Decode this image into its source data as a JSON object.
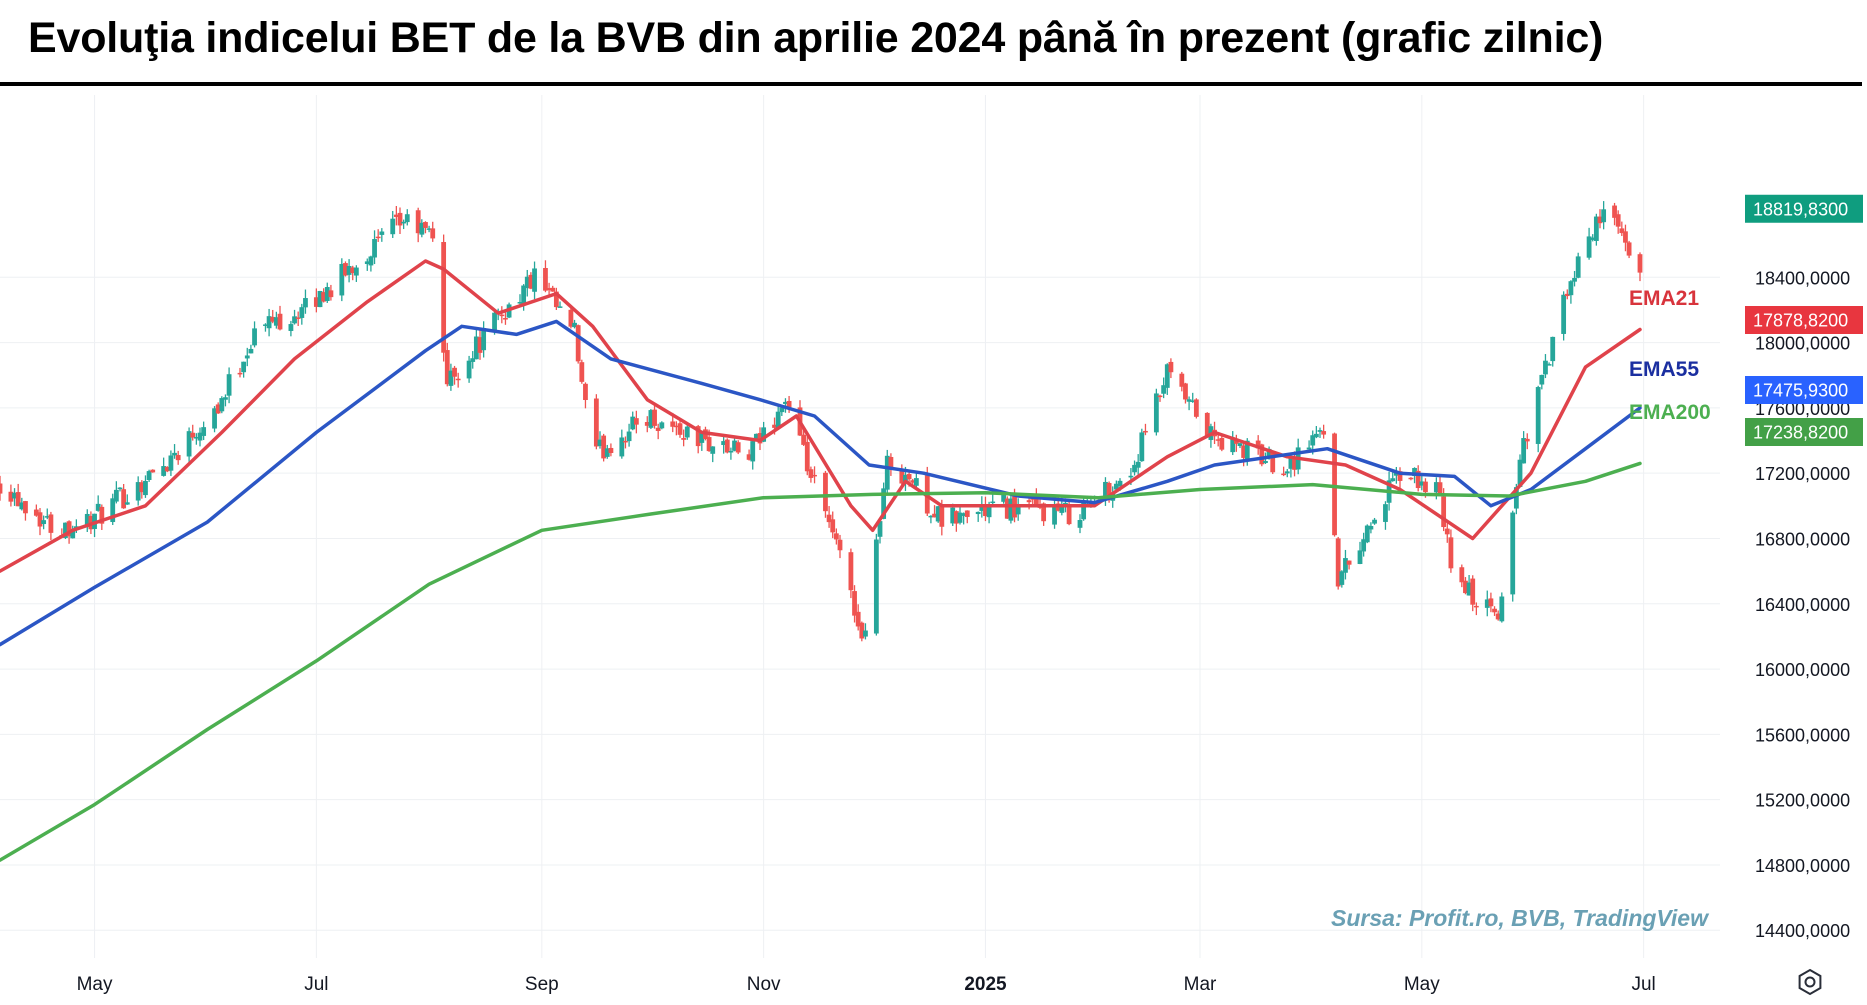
{
  "title": "Evoluţia indicelui BET de la BVB din aprilie 2024 până în prezent (grafic zilnic)",
  "source_note": "Sursa: Profit.ro, BVB, TradingView",
  "colors": {
    "up": "#26a69a",
    "down": "#ef5350",
    "ema21": "#e0434b",
    "ema55": "#2b56c5",
    "ema200": "#4caf50",
    "price_tag": "#0f9d7f",
    "ema21_tag": "#e8363f",
    "ema55_tag": "#2962ff",
    "ema200_tag": "#43a047",
    "grid": "#eef0f3"
  },
  "chart_data": {
    "type": "candlestick",
    "instrument": "BET",
    "interval": "daily",
    "x_tick_labels": [
      {
        "label": "May",
        "date": "2024-05-01"
      },
      {
        "label": "Jul",
        "date": "2024-07-01"
      },
      {
        "label": "Sep",
        "date": "2024-09-01"
      },
      {
        "label": "Nov",
        "date": "2024-11-01"
      },
      {
        "label": "2025",
        "date": "2025-01-01",
        "bold": true
      },
      {
        "label": "Mar",
        "date": "2025-03-01"
      },
      {
        "label": "May",
        "date": "2025-05-01"
      },
      {
        "label": "Jul",
        "date": "2025-07-01"
      }
    ],
    "x_range": [
      "2024-04-05",
      "2025-07-22"
    ],
    "y_tick_labels": [
      "18400,0000",
      "18000,0000",
      "17600,0000",
      "17200,0000",
      "16800,0000",
      "16400,0000",
      "16000,0000",
      "15600,0000",
      "15200,0000",
      "14800,0000",
      "14400,0000"
    ],
    "y_ticks": [
      18400,
      18000,
      17600,
      17200,
      16800,
      16400,
      16000,
      15600,
      15200,
      14800,
      14400
    ],
    "ylim": [
      14230,
      19290
    ],
    "grid": true,
    "price_series": [
      {
        "date": "2024-04-05",
        "close": 17150
      },
      {
        "date": "2024-04-20",
        "close": 16860
      },
      {
        "date": "2024-05-01",
        "close": 16920
      },
      {
        "date": "2024-05-20",
        "close": 17250
      },
      {
        "date": "2024-06-05",
        "close": 17650
      },
      {
        "date": "2024-06-15",
        "close": 18100
      },
      {
        "date": "2024-06-28",
        "close": 18200
      },
      {
        "date": "2024-07-10",
        "close": 18450
      },
      {
        "date": "2024-07-25",
        "close": 18750
      },
      {
        "date": "2024-08-02",
        "close": 18650
      },
      {
        "date": "2024-08-06",
        "close": 17750
      },
      {
        "date": "2024-08-20",
        "close": 18150
      },
      {
        "date": "2024-08-30",
        "close": 18400
      },
      {
        "date": "2024-09-10",
        "close": 18050
      },
      {
        "date": "2024-09-15",
        "close": 17300
      },
      {
        "date": "2024-09-30",
        "close": 17550
      },
      {
        "date": "2024-10-15",
        "close": 17400
      },
      {
        "date": "2024-10-28",
        "close": 17300
      },
      {
        "date": "2024-11-07",
        "close": 17650
      },
      {
        "date": "2024-11-12",
        "close": 17300
      },
      {
        "date": "2024-11-25",
        "close": 16500
      },
      {
        "date": "2024-11-28",
        "close": 16150
      },
      {
        "date": "2024-12-05",
        "close": 17250
      },
      {
        "date": "2024-12-10",
        "close": 17200
      },
      {
        "date": "2024-12-20",
        "close": 16900
      },
      {
        "date": "2025-01-05",
        "close": 17000
      },
      {
        "date": "2025-01-25",
        "close": 16950
      },
      {
        "date": "2025-02-10",
        "close": 17200
      },
      {
        "date": "2025-02-20",
        "close": 17800
      },
      {
        "date": "2025-03-05",
        "close": 17400
      },
      {
        "date": "2025-03-25",
        "close": 17250
      },
      {
        "date": "2025-04-05",
        "close": 17500
      },
      {
        "date": "2025-04-08",
        "close": 16550
      },
      {
        "date": "2025-04-25",
        "close": 17200
      },
      {
        "date": "2025-05-05",
        "close": 17100
      },
      {
        "date": "2025-05-10",
        "close": 16550
      },
      {
        "date": "2025-05-22",
        "close": 16300
      },
      {
        "date": "2025-05-28",
        "close": 17300
      },
      {
        "date": "2025-06-10",
        "close": 18300
      },
      {
        "date": "2025-06-20",
        "close": 18850
      },
      {
        "date": "2025-06-30",
        "close": 18380
      }
    ],
    "series": [
      {
        "name": "EMA21",
        "last_value": "17878,8200",
        "points": [
          {
            "date": "2024-04-05",
            "value": 16600
          },
          {
            "date": "2024-04-25",
            "value": 16850
          },
          {
            "date": "2024-05-15",
            "value": 17000
          },
          {
            "date": "2024-06-05",
            "value": 17450
          },
          {
            "date": "2024-06-25",
            "value": 17900
          },
          {
            "date": "2024-07-15",
            "value": 18250
          },
          {
            "date": "2024-07-31",
            "value": 18500
          },
          {
            "date": "2024-08-05",
            "value": 18450
          },
          {
            "date": "2024-08-20",
            "value": 18180
          },
          {
            "date": "2024-09-05",
            "value": 18300
          },
          {
            "date": "2024-09-15",
            "value": 18100
          },
          {
            "date": "2024-09-30",
            "value": 17650
          },
          {
            "date": "2024-10-15",
            "value": 17450
          },
          {
            "date": "2024-10-31",
            "value": 17400
          },
          {
            "date": "2024-11-10",
            "value": 17550
          },
          {
            "date": "2024-11-25",
            "value": 17000
          },
          {
            "date": "2024-12-01",
            "value": 16850
          },
          {
            "date": "2024-12-10",
            "value": 17150
          },
          {
            "date": "2024-12-20",
            "value": 17000
          },
          {
            "date": "2025-01-10",
            "value": 17000
          },
          {
            "date": "2025-01-31",
            "value": 17000
          },
          {
            "date": "2025-02-20",
            "value": 17300
          },
          {
            "date": "2025-03-05",
            "value": 17450
          },
          {
            "date": "2025-03-25",
            "value": 17300
          },
          {
            "date": "2025-04-10",
            "value": 17250
          },
          {
            "date": "2025-04-25",
            "value": 17100
          },
          {
            "date": "2025-05-15",
            "value": 16800
          },
          {
            "date": "2025-05-31",
            "value": 17200
          },
          {
            "date": "2025-06-15",
            "value": 17850
          },
          {
            "date": "2025-06-30",
            "value": 18080
          }
        ]
      },
      {
        "name": "EMA55",
        "last_value": "17475,9300",
        "points": [
          {
            "date": "2024-04-05",
            "value": 16150
          },
          {
            "date": "2024-05-01",
            "value": 16500
          },
          {
            "date": "2024-06-01",
            "value": 16900
          },
          {
            "date": "2024-07-01",
            "value": 17450
          },
          {
            "date": "2024-07-31",
            "value": 17950
          },
          {
            "date": "2024-08-10",
            "value": 18100
          },
          {
            "date": "2024-08-25",
            "value": 18050
          },
          {
            "date": "2024-09-05",
            "value": 18130
          },
          {
            "date": "2024-09-20",
            "value": 17900
          },
          {
            "date": "2024-10-15",
            "value": 17750
          },
          {
            "date": "2024-10-31",
            "value": 17650
          },
          {
            "date": "2024-11-15",
            "value": 17550
          },
          {
            "date": "2024-11-30",
            "value": 17250
          },
          {
            "date": "2024-12-15",
            "value": 17200
          },
          {
            "date": "2025-01-10",
            "value": 17060
          },
          {
            "date": "2025-01-31",
            "value": 17020
          },
          {
            "date": "2025-02-20",
            "value": 17150
          },
          {
            "date": "2025-03-05",
            "value": 17250
          },
          {
            "date": "2025-04-05",
            "value": 17350
          },
          {
            "date": "2025-04-25",
            "value": 17200
          },
          {
            "date": "2025-05-10",
            "value": 17180
          },
          {
            "date": "2025-05-20",
            "value": 17000
          },
          {
            "date": "2025-05-31",
            "value": 17100
          },
          {
            "date": "2025-06-15",
            "value": 17350
          },
          {
            "date": "2025-06-30",
            "value": 17600
          }
        ]
      },
      {
        "name": "EMA200",
        "last_value": "17238,8200",
        "points": [
          {
            "date": "2024-04-05",
            "value": 14830
          },
          {
            "date": "2024-05-01",
            "value": 15170
          },
          {
            "date": "2024-06-01",
            "value": 15630
          },
          {
            "date": "2024-07-01",
            "value": 16050
          },
          {
            "date": "2024-08-01",
            "value": 16520
          },
          {
            "date": "2024-09-01",
            "value": 16850
          },
          {
            "date": "2024-10-01",
            "value": 16950
          },
          {
            "date": "2024-11-01",
            "value": 17050
          },
          {
            "date": "2024-12-01",
            "value": 17070
          },
          {
            "date": "2025-01-01",
            "value": 17080
          },
          {
            "date": "2025-02-01",
            "value": 17050
          },
          {
            "date": "2025-03-01",
            "value": 17100
          },
          {
            "date": "2025-04-01",
            "value": 17130
          },
          {
            "date": "2025-05-01",
            "value": 17070
          },
          {
            "date": "2025-05-25",
            "value": 17060
          },
          {
            "date": "2025-06-15",
            "value": 17150
          },
          {
            "date": "2025-06-30",
            "value": 17260
          }
        ]
      }
    ],
    "last_price": "18819,8300",
    "last_price_value": 18819.83
  }
}
